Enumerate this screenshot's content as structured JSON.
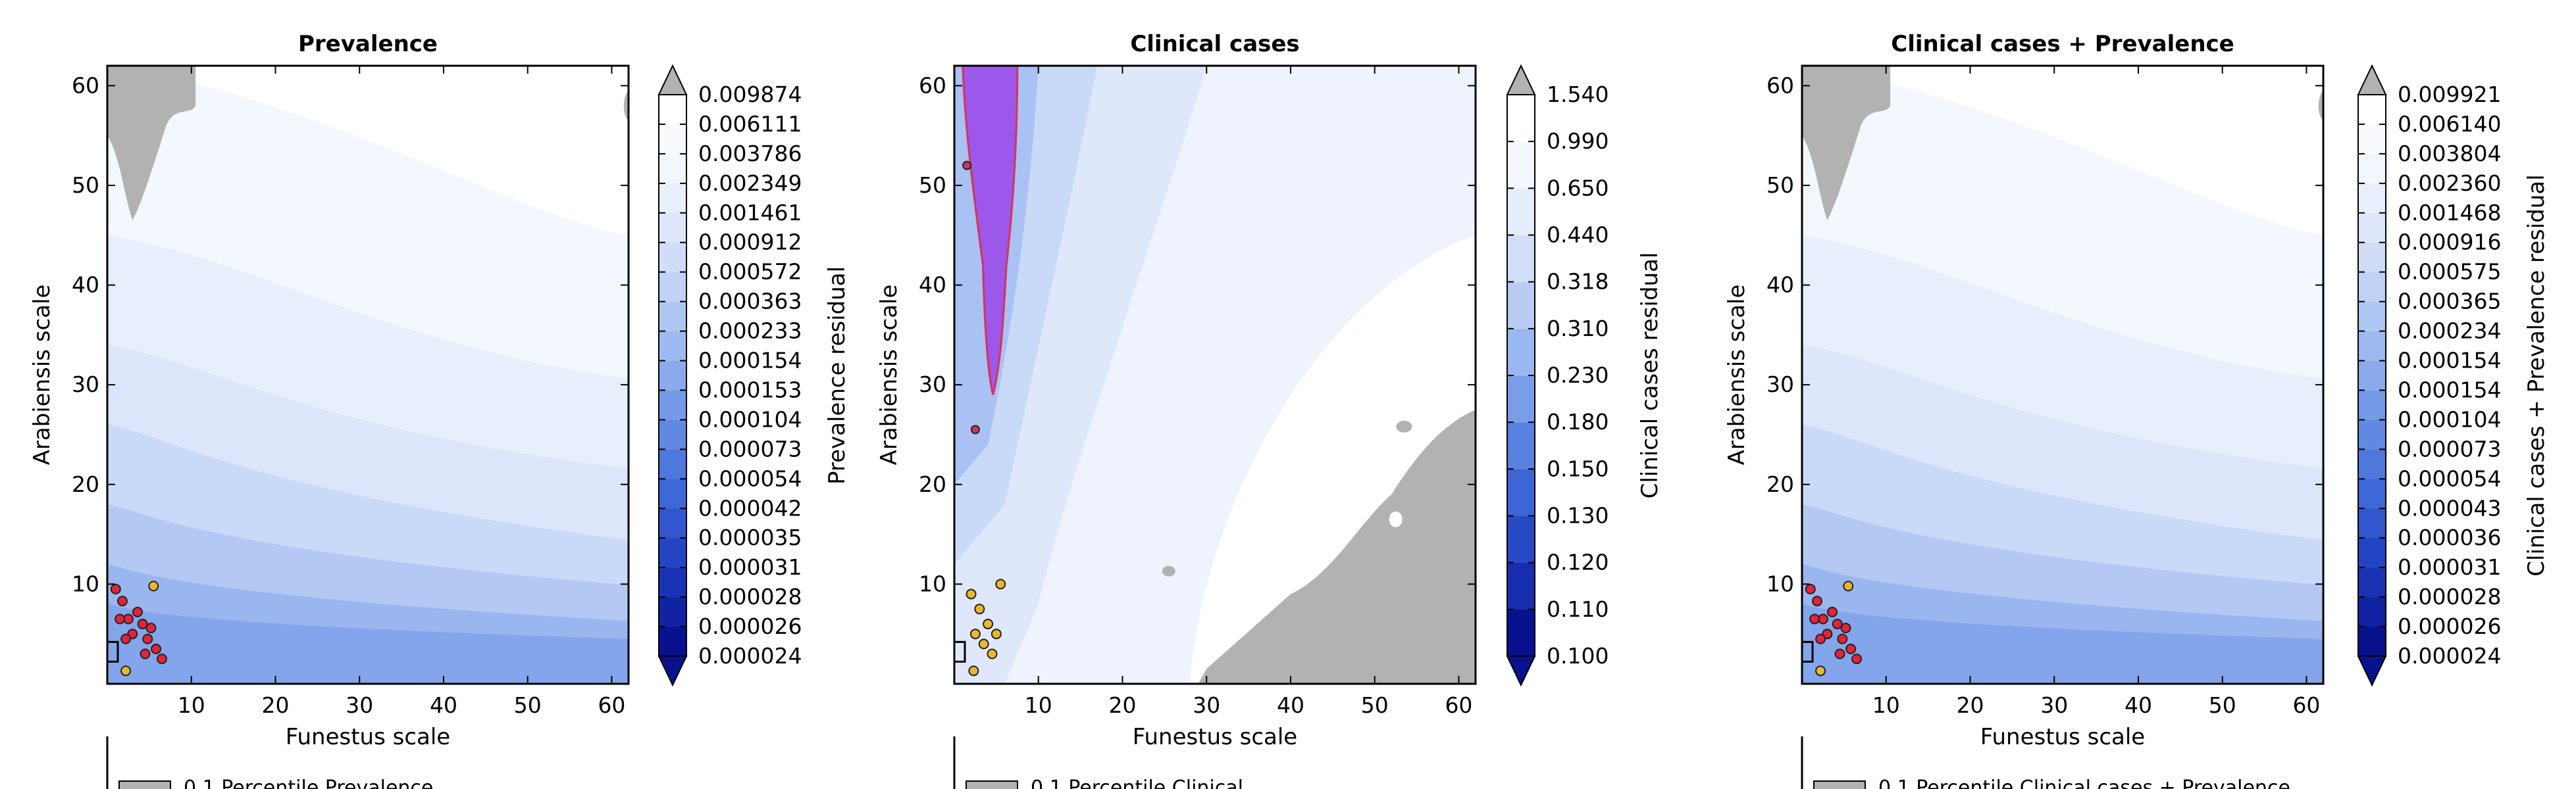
{
  "chart_data": [
    {
      "type": "contour",
      "title": "Prevalence",
      "xlabel": "Funestus scale",
      "ylabel": "Arabiensis scale",
      "xticks": [
        10,
        20,
        30,
        40,
        50,
        60
      ],
      "yticks": [
        10,
        20,
        30,
        40,
        50,
        60
      ],
      "xlim": [
        0,
        62
      ],
      "ylim": [
        0,
        62
      ],
      "colorbar": {
        "label": "Prevalence residual",
        "levels": [
          "0.000024",
          "0.000026",
          "0.000028",
          "0.000031",
          "0.000035",
          "0.000042",
          "0.000054",
          "0.000073",
          "0.000104",
          "0.000153",
          "0.000154",
          "0.000233",
          "0.000363",
          "0.000572",
          "0.000912",
          "0.001461",
          "0.002349",
          "0.003786",
          "0.006111",
          "0.009874"
        ]
      },
      "legend_partial": "0.1 Percentile Prevalence",
      "gray_regions": "top-left corner (x<10, y>45) and right edge near y≈58"
    },
    {
      "type": "contour",
      "title": "Clinical cases",
      "xlabel": "Funestus scale",
      "ylabel": "Arabiensis scale",
      "xticks": [
        10,
        20,
        30,
        40,
        50,
        60
      ],
      "yticks": [
        10,
        20,
        30,
        40,
        50,
        60
      ],
      "xlim": [
        0,
        62
      ],
      "ylim": [
        0,
        62
      ],
      "colorbar": {
        "label": "Clinical cases residual",
        "levels": [
          "0.100",
          "0.110",
          "0.120",
          "0.130",
          "0.150",
          "0.180",
          "0.230",
          "0.310",
          "0.318",
          "0.440",
          "0.650",
          "0.990",
          "1.540"
        ]
      },
      "legend_partial": "0.1 Percentile Clinical",
      "highlight_region": "purple band x≈1–7, y≈29–62",
      "gray_regions": "bottom-right (x>30, y<28)"
    },
    {
      "type": "contour",
      "title": "Clinical cases + Prevalence",
      "xlabel": "Funestus scale",
      "ylabel": "Arabiensis scale",
      "xticks": [
        10,
        20,
        30,
        40,
        50,
        60
      ],
      "yticks": [
        10,
        20,
        30,
        40,
        50,
        60
      ],
      "xlim": [
        0,
        62
      ],
      "ylim": [
        0,
        62
      ],
      "colorbar": {
        "label": "Clinical cases + Prevalence residual",
        "levels": [
          "0.000024",
          "0.000026",
          "0.000028",
          "0.000031",
          "0.000036",
          "0.000043",
          "0.000054",
          "0.000073",
          "0.000104",
          "0.000154",
          "0.000154",
          "0.000234",
          "0.000365",
          "0.000575",
          "0.000916",
          "0.001468",
          "0.002360",
          "0.003804",
          "0.006140",
          "0.009921"
        ]
      },
      "legend_partial": "0.1 Percentile Clinical cases + Prevalence",
      "gray_regions": "top-left corner (x<10, y>45) and right edge near y≈58"
    }
  ]
}
